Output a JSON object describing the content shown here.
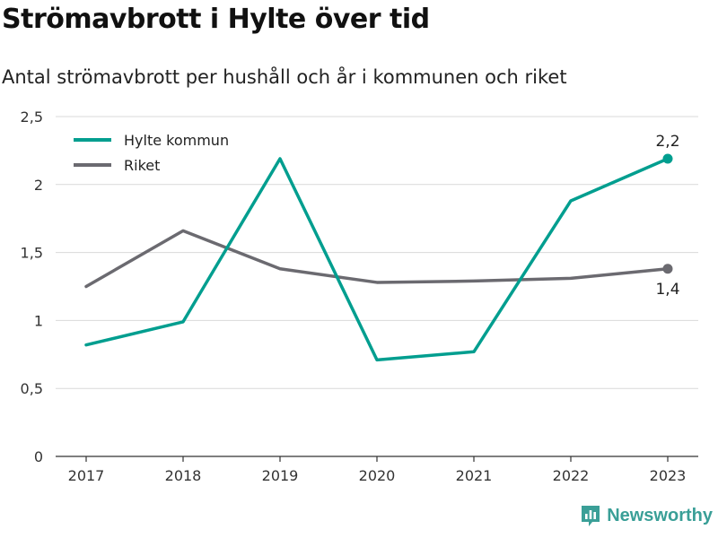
{
  "title": "Strömavbrott i Hylte över tid",
  "subtitle": "Antal strömavbrott per hushåll och år i kommunen och riket",
  "brand": "Newsworthy",
  "colors": {
    "hylte": "#009e8f",
    "riket": "#6b6a70",
    "grid": "#d9d9d9",
    "axis": "#333333",
    "brand": "#3a9f97"
  },
  "chart_data": {
    "type": "line",
    "categories": [
      "2017",
      "2018",
      "2019",
      "2020",
      "2021",
      "2022",
      "2023"
    ],
    "series": [
      {
        "name": "Hylte kommun",
        "values": [
          0.82,
          0.99,
          2.19,
          0.71,
          0.77,
          1.88,
          2.19
        ],
        "end_label": "2,2"
      },
      {
        "name": "Riket",
        "values": [
          1.25,
          1.66,
          1.38,
          1.28,
          1.29,
          1.31,
          1.38
        ],
        "end_label": "1,4"
      }
    ],
    "yticks": [
      {
        "value": 0,
        "label": "0"
      },
      {
        "value": 0.5,
        "label": "0,5"
      },
      {
        "value": 1,
        "label": "1"
      },
      {
        "value": 1.5,
        "label": "1,5"
      },
      {
        "value": 2,
        "label": "2"
      },
      {
        "value": 2.5,
        "label": "2,5"
      }
    ],
    "ylim": [
      0,
      2.5
    ],
    "grid": true,
    "legend": "top-left"
  }
}
